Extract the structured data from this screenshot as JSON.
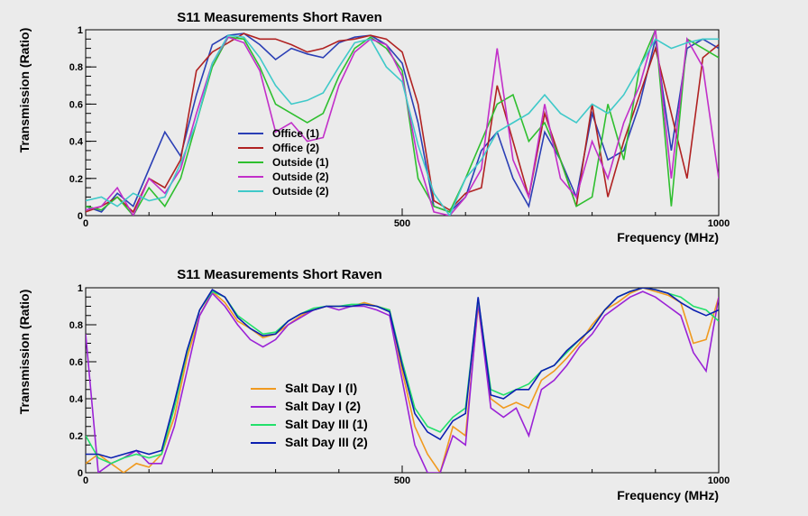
{
  "chart_data": [
    {
      "type": "line",
      "title": "S11 Measurements Short Raven",
      "xlabel": "Frequency (MHz)",
      "ylabel": "Transmission (Ratio)",
      "xlim": [
        0,
        1000
      ],
      "ylim": [
        0,
        1
      ],
      "x_ticks": [
        {
          "value": 0,
          "label": "0"
        },
        {
          "value": 500,
          "label": "500"
        },
        {
          "value": 1000,
          "label": "1000"
        }
      ],
      "y_ticks": [
        {
          "value": 0,
          "label": "0"
        },
        {
          "value": 0.2,
          "label": "0.2"
        },
        {
          "value": 0.4,
          "label": "0.4"
        },
        {
          "value": 0.6,
          "label": "0.6"
        },
        {
          "value": 0.8,
          "label": "0.8"
        },
        {
          "value": 1,
          "label": "1"
        }
      ],
      "grid": false,
      "legend_position": "center-left",
      "x": [
        0,
        25,
        50,
        75,
        100,
        125,
        150,
        175,
        200,
        225,
        250,
        275,
        300,
        325,
        350,
        375,
        400,
        425,
        450,
        475,
        500,
        525,
        550,
        575,
        600,
        625,
        650,
        675,
        700,
        725,
        750,
        775,
        800,
        825,
        850,
        875,
        900,
        925,
        950,
        975,
        1000
      ],
      "series": [
        {
          "name": "Office (1)",
          "color": "#2b3fb5",
          "values": [
            0.05,
            0.02,
            0.12,
            0.05,
            0.25,
            0.45,
            0.32,
            0.65,
            0.92,
            0.97,
            0.98,
            0.92,
            0.84,
            0.9,
            0.87,
            0.85,
            0.93,
            0.96,
            0.97,
            0.92,
            0.82,
            0.5,
            0.05,
            0.02,
            0.1,
            0.35,
            0.45,
            0.2,
            0.05,
            0.45,
            0.3,
            0.1,
            0.55,
            0.3,
            0.35,
            0.6,
            0.95,
            0.35,
            0.9,
            0.95,
            0.9
          ]
        },
        {
          "name": "Office (2)",
          "color": "#b02222",
          "values": [
            0.02,
            0.05,
            0.1,
            0.02,
            0.2,
            0.15,
            0.3,
            0.78,
            0.88,
            0.93,
            0.98,
            0.95,
            0.95,
            0.92,
            0.88,
            0.9,
            0.94,
            0.95,
            0.97,
            0.95,
            0.88,
            0.6,
            0.08,
            0.03,
            0.12,
            0.15,
            0.7,
            0.4,
            0.1,
            0.55,
            0.3,
            0.05,
            0.6,
            0.1,
            0.4,
            0.65,
            0.9,
            0.55,
            0.2,
            0.85,
            0.92
          ]
        },
        {
          "name": "Outside (1)",
          "color": "#2fbf2f",
          "values": [
            0.05,
            0.03,
            0.1,
            0.0,
            0.15,
            0.05,
            0.2,
            0.5,
            0.8,
            0.96,
            0.95,
            0.8,
            0.6,
            0.55,
            0.5,
            0.55,
            0.75,
            0.9,
            0.96,
            0.9,
            0.78,
            0.2,
            0.05,
            0.02,
            0.2,
            0.4,
            0.6,
            0.65,
            0.4,
            0.5,
            0.3,
            0.05,
            0.1,
            0.6,
            0.3,
            0.8,
            1.0,
            0.05,
            0.95,
            0.9,
            0.85
          ]
        },
        {
          "name": "Outside (2)",
          "color": "#c22fc9",
          "values": [
            0.03,
            0.05,
            0.15,
            0.0,
            0.2,
            0.12,
            0.25,
            0.55,
            0.82,
            0.96,
            0.93,
            0.78,
            0.45,
            0.5,
            0.4,
            0.42,
            0.7,
            0.88,
            0.95,
            0.92,
            0.75,
            0.3,
            0.02,
            0.0,
            0.1,
            0.25,
            0.9,
            0.3,
            0.1,
            0.6,
            0.2,
            0.1,
            0.4,
            0.2,
            0.5,
            0.7,
            1.0,
            0.2,
            0.95,
            0.8,
            0.2
          ]
        },
        {
          "name": "Outside (2)",
          "color": "#3fc9c9",
          "values": [
            0.08,
            0.1,
            0.05,
            0.12,
            0.08,
            0.1,
            0.28,
            0.5,
            0.82,
            0.97,
            0.96,
            0.85,
            0.7,
            0.6,
            0.62,
            0.66,
            0.8,
            0.93,
            0.95,
            0.8,
            0.72,
            0.38,
            0.12,
            0.0,
            0.2,
            0.3,
            0.45,
            0.5,
            0.55,
            0.65,
            0.55,
            0.5,
            0.6,
            0.55,
            0.65,
            0.8,
            0.95,
            0.9,
            0.93,
            0.95,
            0.95
          ]
        }
      ]
    },
    {
      "type": "line",
      "title": "S11 Measurements Short Raven",
      "xlabel": "Frequency (MHz)",
      "ylabel": "Transmission (Ratio)",
      "xlim": [
        0,
        1000
      ],
      "ylim": [
        0,
        1
      ],
      "x_ticks": [
        {
          "value": 0,
          "label": "0"
        },
        {
          "value": 500,
          "label": "500"
        },
        {
          "value": 1000,
          "label": "1000"
        }
      ],
      "y_ticks": [
        {
          "value": 0,
          "label": "0"
        },
        {
          "value": 0.2,
          "label": "0.2"
        },
        {
          "value": 0.4,
          "label": "0.4"
        },
        {
          "value": 0.6,
          "label": "0.6"
        },
        {
          "value": 0.8,
          "label": "0.8"
        },
        {
          "value": 1,
          "label": "1"
        }
      ],
      "grid": false,
      "legend_position": "bottom-center-left",
      "x": [
        0,
        20,
        40,
        60,
        80,
        100,
        120,
        140,
        160,
        180,
        200,
        220,
        240,
        260,
        280,
        300,
        320,
        340,
        360,
        380,
        400,
        420,
        440,
        460,
        480,
        500,
        520,
        540,
        560,
        580,
        600,
        620,
        640,
        660,
        680,
        700,
        720,
        740,
        760,
        780,
        800,
        820,
        840,
        860,
        880,
        900,
        920,
        940,
        960,
        980,
        1000
      ],
      "series": [
        {
          "name": "Salt Day I (I)",
          "color": "#f09a1f",
          "values": [
            0.05,
            0.1,
            0.05,
            0.0,
            0.05,
            0.03,
            0.1,
            0.3,
            0.62,
            0.85,
            0.98,
            0.92,
            0.82,
            0.78,
            0.73,
            0.75,
            0.8,
            0.85,
            0.88,
            0.9,
            0.9,
            0.9,
            0.92,
            0.9,
            0.88,
            0.55,
            0.25,
            0.1,
            0.0,
            0.25,
            0.2,
            0.9,
            0.4,
            0.35,
            0.38,
            0.35,
            0.5,
            0.55,
            0.62,
            0.7,
            0.8,
            0.88,
            0.92,
            0.97,
            1.0,
            0.98,
            0.96,
            0.92,
            0.7,
            0.72,
            0.95
          ]
        },
        {
          "name": "Salt Day I (2)",
          "color": "#9b22d6",
          "values": [
            0.75,
            0.0,
            0.05,
            0.08,
            0.12,
            0.05,
            0.05,
            0.25,
            0.55,
            0.85,
            0.97,
            0.9,
            0.8,
            0.72,
            0.68,
            0.72,
            0.8,
            0.84,
            0.88,
            0.9,
            0.88,
            0.9,
            0.9,
            0.88,
            0.85,
            0.5,
            0.15,
            0.0,
            0.0,
            0.2,
            0.15,
            0.92,
            0.35,
            0.3,
            0.35,
            0.2,
            0.45,
            0.5,
            0.58,
            0.68,
            0.75,
            0.85,
            0.9,
            0.95,
            0.98,
            0.95,
            0.9,
            0.85,
            0.65,
            0.55,
            0.95
          ]
        },
        {
          "name": "Salt Day III (1)",
          "color": "#22e06a",
          "values": [
            0.2,
            0.08,
            0.05,
            0.08,
            0.1,
            0.08,
            0.1,
            0.35,
            0.65,
            0.88,
            0.98,
            0.95,
            0.85,
            0.8,
            0.75,
            0.76,
            0.82,
            0.86,
            0.89,
            0.9,
            0.9,
            0.91,
            0.91,
            0.9,
            0.88,
            0.6,
            0.35,
            0.25,
            0.22,
            0.3,
            0.35,
            0.94,
            0.45,
            0.42,
            0.45,
            0.48,
            0.55,
            0.58,
            0.65,
            0.72,
            0.78,
            0.88,
            0.95,
            0.98,
            1.0,
            0.99,
            0.97,
            0.95,
            0.9,
            0.88,
            0.82
          ]
        },
        {
          "name": "Salt Day III (2)",
          "color": "#0b1fb0",
          "values": [
            0.1,
            0.1,
            0.08,
            0.1,
            0.12,
            0.1,
            0.12,
            0.38,
            0.66,
            0.88,
            0.99,
            0.95,
            0.84,
            0.78,
            0.74,
            0.75,
            0.82,
            0.86,
            0.88,
            0.9,
            0.9,
            0.9,
            0.91,
            0.9,
            0.87,
            0.58,
            0.32,
            0.22,
            0.18,
            0.28,
            0.32,
            0.95,
            0.42,
            0.4,
            0.45,
            0.45,
            0.55,
            0.58,
            0.66,
            0.72,
            0.78,
            0.88,
            0.95,
            0.98,
            1.0,
            0.99,
            0.97,
            0.92,
            0.88,
            0.85,
            0.88
          ]
        }
      ]
    }
  ]
}
